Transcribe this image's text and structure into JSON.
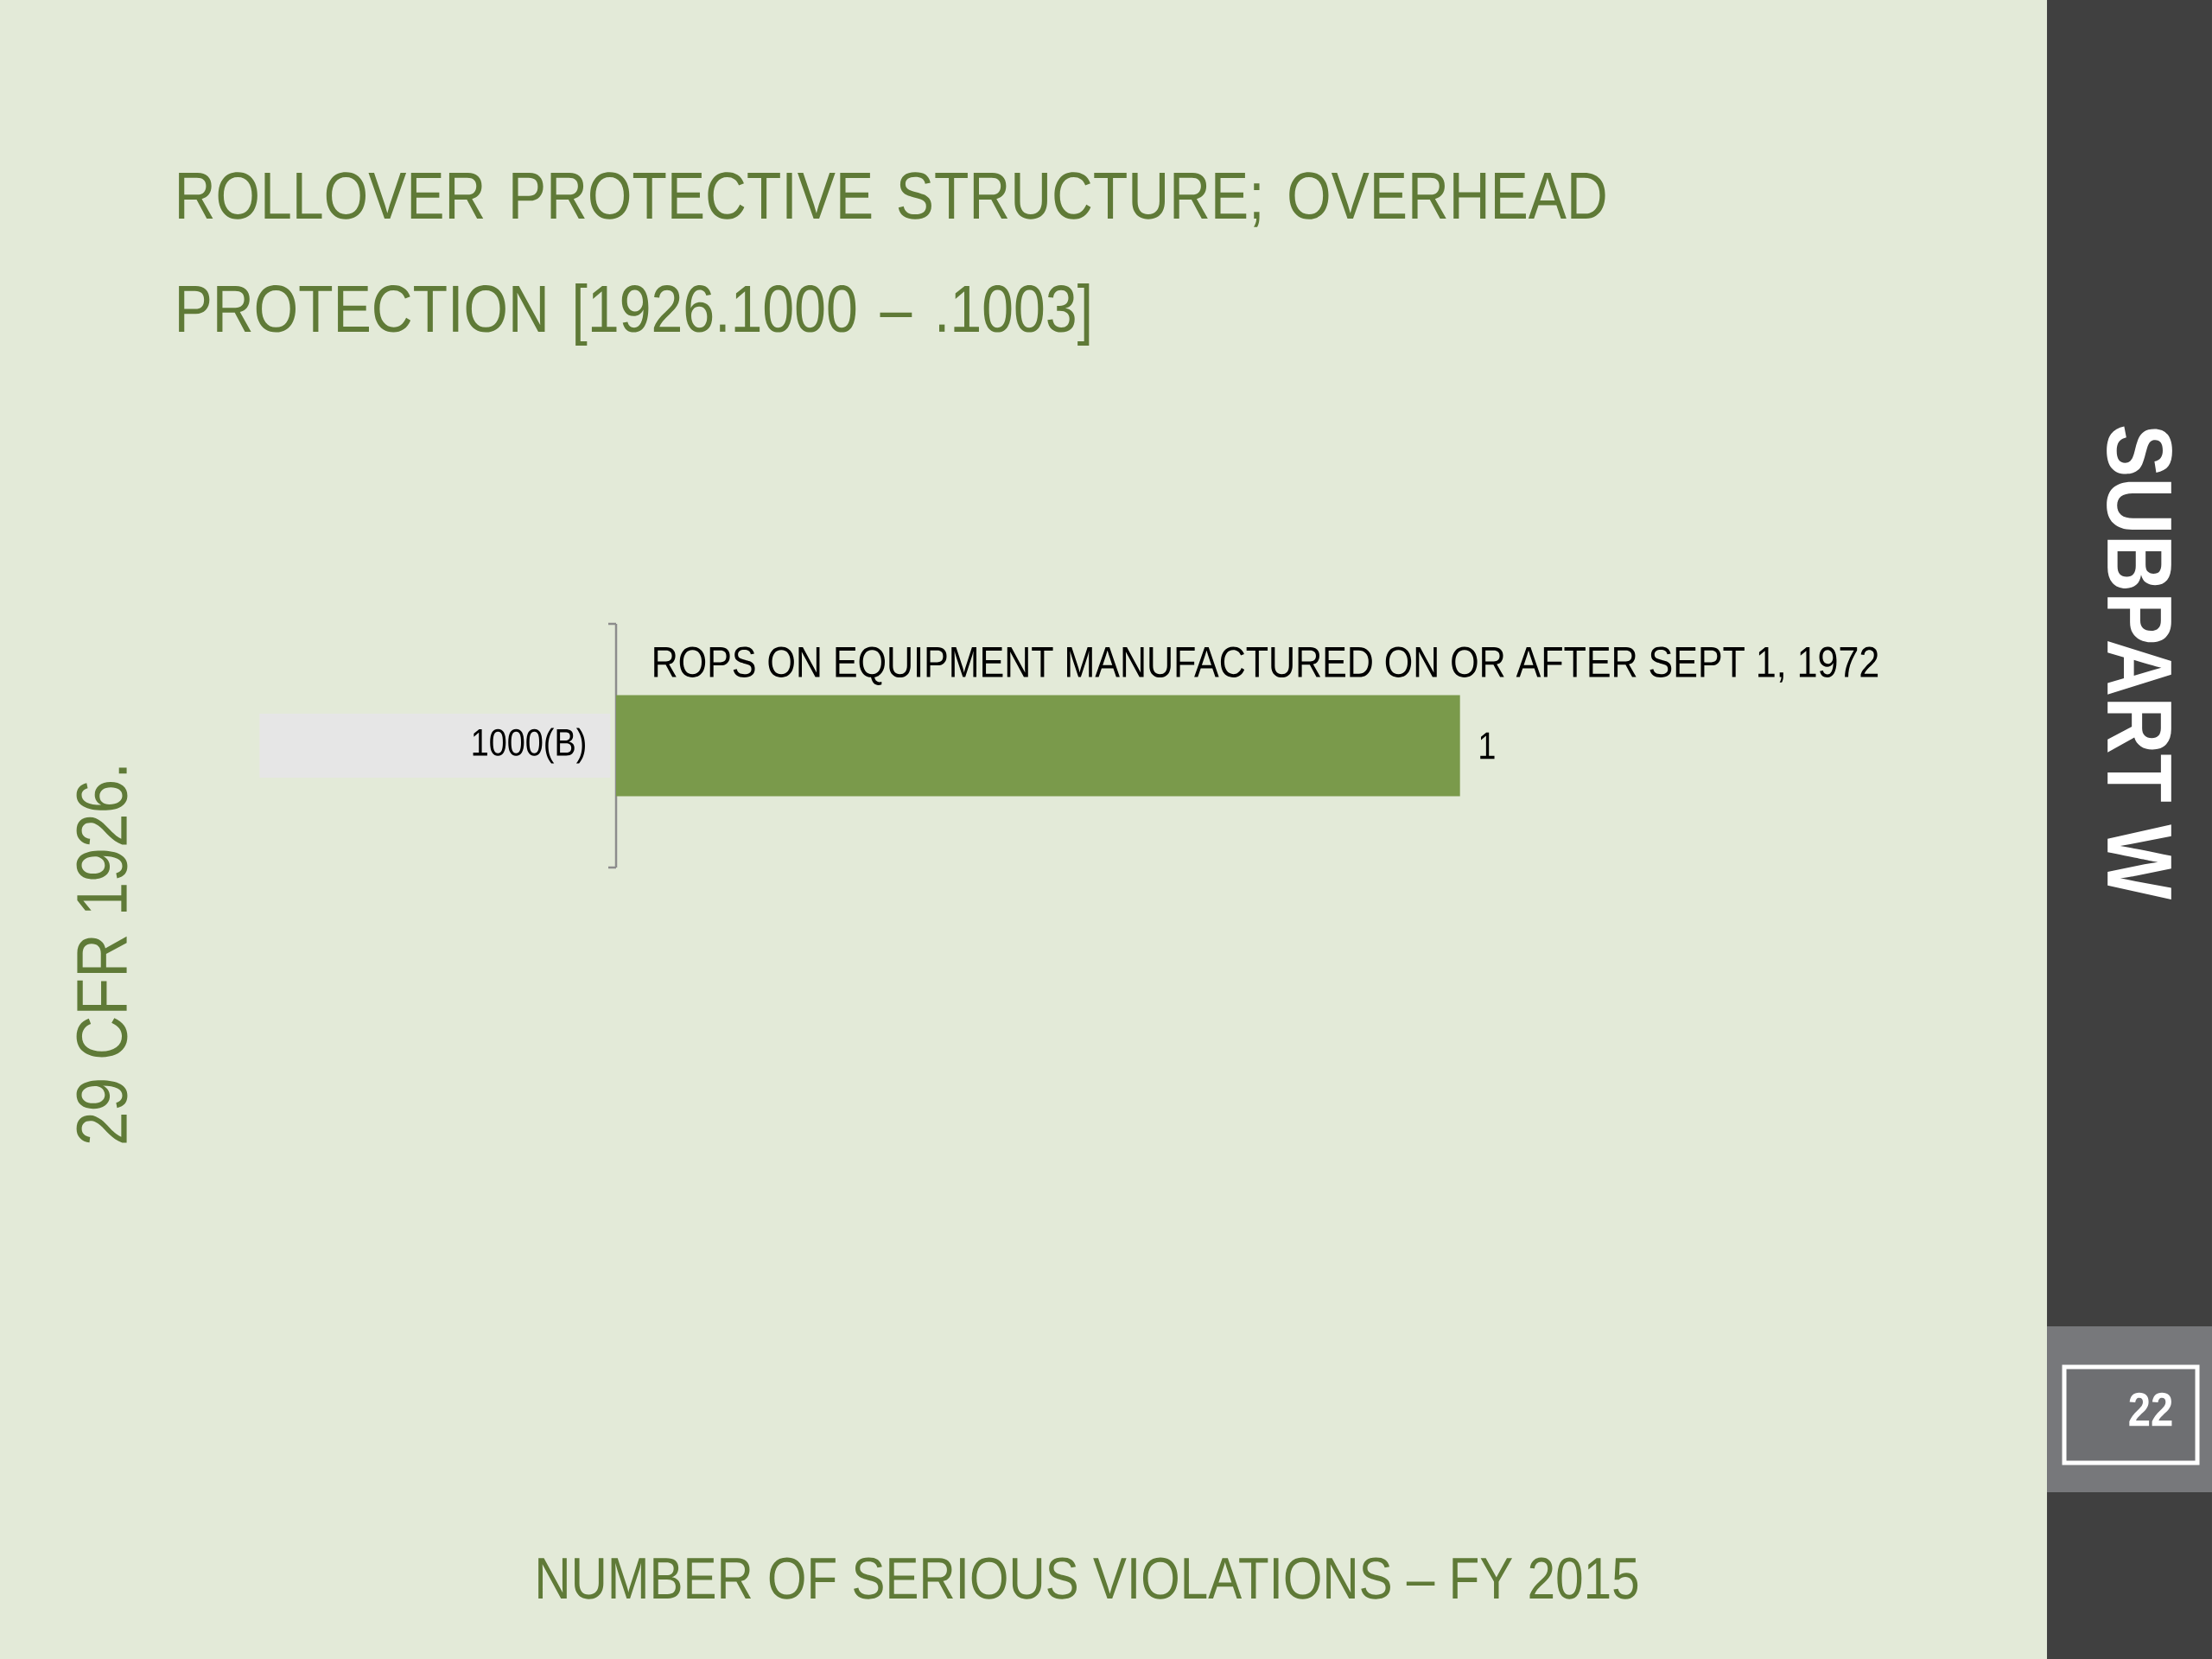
{
  "chart_data": {
    "type": "bar",
    "orientation": "horizontal",
    "title": "ROLLOVER PROTECTIVE STRUCTURE; OVERHEAD PROTECTION [1926.1000 – .1003]",
    "ylabel": "29 CFR 1926.",
    "categories": [
      "1000(B)"
    ],
    "values": [
      1
    ],
    "color": "#7a9a4b",
    "data_labels": true,
    "tick_labels": "y",
    "annotations": [
      "ROPS ON EQUIPMENT MANUFACTURED ON OR AFTER SEPT 1, 1972",
      "NUMBER OF SERIOUS VIOLATIONS – FY 2015",
      "SUBPART W",
      "22"
    ]
  }
}
